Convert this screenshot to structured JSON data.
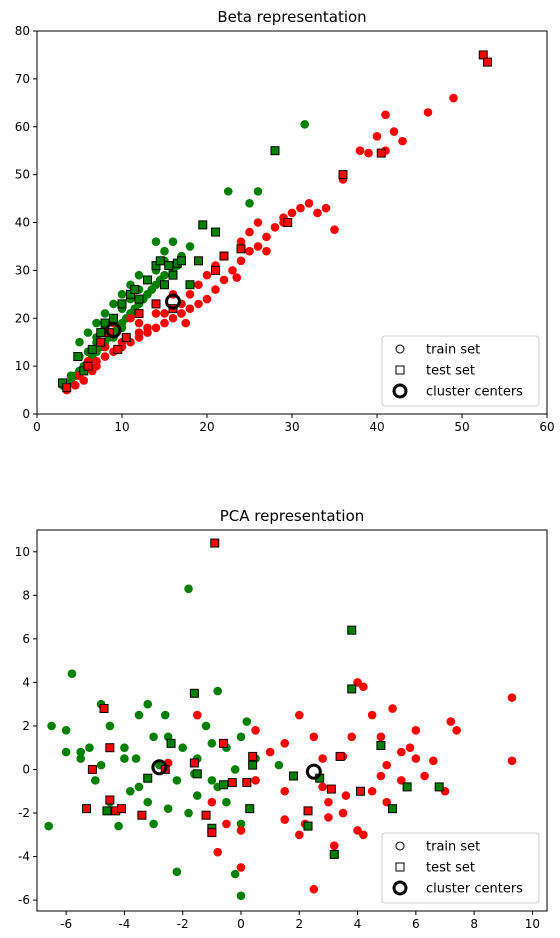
{
  "chart_data": [
    {
      "type": "scatter",
      "title": "Beta representation",
      "xlabel": "",
      "ylabel": "",
      "xlim": [
        0,
        60
      ],
      "ylim": [
        0,
        80
      ],
      "xticks": [
        0,
        10,
        20,
        30,
        40,
        50,
        60
      ],
      "yticks": [
        0,
        10,
        20,
        30,
        40,
        50,
        60,
        70,
        80
      ],
      "legend": {
        "placement": "bottom-right",
        "entries": [
          {
            "label": "train set",
            "marker": "circle-hollow"
          },
          {
            "label": "test set",
            "marker": "square-hollow"
          },
          {
            "label": "cluster centers",
            "marker": "circle-thick"
          }
        ]
      },
      "colors": {
        "class_a": "#ff0000",
        "class_b": "#008000",
        "edge": "#000000"
      },
      "train_green": [
        [
          3,
          6
        ],
        [
          4,
          7
        ],
        [
          4.5,
          8
        ],
        [
          5,
          9
        ],
        [
          5.5,
          10
        ],
        [
          6,
          11
        ],
        [
          6.5,
          12
        ],
        [
          7,
          13
        ],
        [
          7.5,
          14
        ],
        [
          8,
          15
        ],
        [
          8.5,
          16
        ],
        [
          9,
          17
        ],
        [
          9.5,
          18
        ],
        [
          10,
          19
        ],
        [
          10.5,
          20
        ],
        [
          11,
          21
        ],
        [
          11.5,
          22
        ],
        [
          12,
          23
        ],
        [
          12.5,
          24
        ],
        [
          13,
          25
        ],
        [
          13.5,
          26
        ],
        [
          14,
          27
        ],
        [
          14.5,
          28
        ],
        [
          15,
          29
        ],
        [
          16,
          30
        ],
        [
          16.5,
          31
        ],
        [
          17,
          33
        ],
        [
          18,
          35
        ],
        [
          14,
          36
        ],
        [
          15,
          34
        ],
        [
          12,
          29
        ],
        [
          11,
          27
        ],
        [
          10,
          25
        ],
        [
          9,
          23
        ],
        [
          8,
          21
        ],
        [
          7,
          19
        ],
        [
          6,
          17
        ],
        [
          5,
          15
        ],
        [
          6,
          13
        ],
        [
          7,
          15
        ],
        [
          8,
          18
        ],
        [
          9,
          20
        ],
        [
          10,
          22
        ],
        [
          11,
          24
        ],
        [
          12,
          26
        ],
        [
          13,
          28
        ],
        [
          14,
          30
        ],
        [
          15,
          32
        ],
        [
          16,
          36
        ],
        [
          22.5,
          46.5
        ],
        [
          26,
          46.5
        ],
        [
          31.5,
          60.5
        ],
        [
          25,
          44
        ],
        [
          4,
          8
        ],
        [
          5,
          12
        ],
        [
          7,
          16
        ],
        [
          8,
          14
        ],
        [
          9,
          16
        ],
        [
          10,
          18
        ]
      ],
      "train_red": [
        [
          3.5,
          5
        ],
        [
          4.5,
          6
        ],
        [
          5.5,
          7
        ],
        [
          6.5,
          9
        ],
        [
          7,
          10
        ],
        [
          8,
          12
        ],
        [
          9,
          13
        ],
        [
          10,
          14
        ],
        [
          11,
          15
        ],
        [
          12,
          16
        ],
        [
          13,
          17
        ],
        [
          14,
          18
        ],
        [
          15,
          19
        ],
        [
          16,
          20
        ],
        [
          17,
          21
        ],
        [
          18,
          22
        ],
        [
          19,
          23
        ],
        [
          20,
          24
        ],
        [
          21,
          26
        ],
        [
          22,
          28
        ],
        [
          23,
          30
        ],
        [
          24,
          32
        ],
        [
          25,
          34
        ],
        [
          26,
          35
        ],
        [
          27,
          37
        ],
        [
          28,
          39
        ],
        [
          29,
          41
        ],
        [
          30,
          42
        ],
        [
          31,
          43
        ],
        [
          32,
          44
        ],
        [
          33,
          42
        ],
        [
          34,
          43
        ],
        [
          35,
          38.5
        ],
        [
          36,
          49
        ],
        [
          38,
          55
        ],
        [
          40,
          58
        ],
        [
          41,
          62.5
        ],
        [
          42,
          59
        ],
        [
          43,
          57
        ],
        [
          46,
          63
        ],
        [
          49,
          66
        ],
        [
          13,
          18
        ],
        [
          15,
          21
        ],
        [
          17,
          23
        ],
        [
          18,
          25
        ],
        [
          19,
          27
        ],
        [
          20,
          29
        ],
        [
          21,
          31
        ],
        [
          22,
          33
        ],
        [
          24,
          36
        ],
        [
          25,
          38
        ],
        [
          26,
          40
        ],
        [
          27,
          34
        ],
        [
          29,
          40
        ],
        [
          23.5,
          28.5
        ],
        [
          17.5,
          19
        ],
        [
          14,
          21
        ],
        [
          12,
          19
        ],
        [
          10,
          15
        ],
        [
          8,
          14
        ],
        [
          6,
          11
        ],
        [
          5,
          8
        ],
        [
          41,
          55
        ],
        [
          39,
          54.5
        ],
        [
          12,
          17
        ],
        [
          16,
          25
        ],
        [
          18,
          27
        ],
        [
          11,
          20
        ],
        [
          9,
          19
        ],
        [
          7,
          11
        ]
      ],
      "test_green": [
        [
          3,
          6.5
        ],
        [
          4.8,
          12
        ],
        [
          5.5,
          9
        ],
        [
          6.5,
          13.5
        ],
        [
          7.5,
          17
        ],
        [
          8,
          19
        ],
        [
          9,
          20
        ],
        [
          10,
          23
        ],
        [
          11,
          25
        ],
        [
          11.5,
          26
        ],
        [
          12,
          24
        ],
        [
          13,
          28
        ],
        [
          14,
          31
        ],
        [
          14.5,
          32
        ],
        [
          15,
          27
        ],
        [
          15.5,
          31
        ],
        [
          16,
          29
        ],
        [
          16.5,
          31.5
        ],
        [
          17,
          32
        ],
        [
          18,
          27
        ],
        [
          19,
          32
        ],
        [
          19.5,
          39.5
        ],
        [
          21,
          38
        ],
        [
          28,
          55
        ]
      ],
      "test_red": [
        [
          3.5,
          5.5
        ],
        [
          6,
          10
        ],
        [
          7.5,
          15
        ],
        [
          8.5,
          17
        ],
        [
          9.5,
          13.5
        ],
        [
          10.5,
          16
        ],
        [
          12,
          21
        ],
        [
          14,
          23
        ],
        [
          16,
          22
        ],
        [
          21,
          30
        ],
        [
          22,
          33
        ],
        [
          24,
          34.5
        ],
        [
          29.5,
          40
        ],
        [
          36,
          50
        ],
        [
          40.5,
          54.5
        ],
        [
          52.5,
          75
        ],
        [
          53,
          73.5
        ]
      ],
      "cluster_centers": [
        [
          9,
          17.5
        ],
        [
          16,
          23.5
        ]
      ]
    },
    {
      "type": "scatter",
      "title": "PCA representation",
      "xlabel": "",
      "ylabel": "",
      "xlim": [
        -7,
        10.5
      ],
      "ylim": [
        -6.5,
        11
      ],
      "xticks": [
        -6,
        -4,
        -2,
        0,
        2,
        4,
        6,
        8,
        10
      ],
      "yticks": [
        -6,
        -4,
        -2,
        0,
        2,
        4,
        6,
        8,
        10
      ],
      "legend": {
        "placement": "bottom-right",
        "entries": [
          {
            "label": "train set",
            "marker": "circle-hollow"
          },
          {
            "label": "test set",
            "marker": "square-hollow"
          },
          {
            "label": "cluster centers",
            "marker": "circle-thick"
          }
        ]
      },
      "colors": {
        "class_a": "#ff0000",
        "class_b": "#008000",
        "edge": "#000000"
      },
      "train_green": [
        [
          -6.6,
          -2.6
        ],
        [
          -6.5,
          2
        ],
        [
          -6,
          1.8
        ],
        [
          -5.8,
          4.4
        ],
        [
          -5.5,
          0.5
        ],
        [
          -5.2,
          1
        ],
        [
          -5,
          -0.5
        ],
        [
          -4.8,
          3
        ],
        [
          -4.5,
          2
        ],
        [
          -4.5,
          -1.5
        ],
        [
          -4.2,
          -2.6
        ],
        [
          -4,
          0.5
        ],
        [
          -3.8,
          -1
        ],
        [
          -3.5,
          2.5
        ],
        [
          -3.5,
          -0.8
        ],
        [
          -3.2,
          3
        ],
        [
          -3,
          1.5
        ],
        [
          -3,
          -2.5
        ],
        [
          -2.8,
          0.2
        ],
        [
          -2.5,
          1.5
        ],
        [
          -2.5,
          -1.8
        ],
        [
          -2.2,
          -0.5
        ],
        [
          -2.2,
          -4.7
        ],
        [
          -2,
          1
        ],
        [
          -1.8,
          8.3
        ],
        [
          -1.8,
          -2
        ],
        [
          -1.5,
          0.5
        ],
        [
          -1.5,
          -1.2
        ],
        [
          -1.2,
          2
        ],
        [
          -1,
          1.2
        ],
        [
          -1,
          -0.5
        ],
        [
          -0.8,
          3.6
        ],
        [
          -0.5,
          1
        ],
        [
          -0.5,
          -1.5
        ],
        [
          -0.2,
          0
        ],
        [
          0,
          1.5
        ],
        [
          0,
          -2.5
        ],
        [
          0,
          -5.8
        ],
        [
          0.2,
          2.2
        ],
        [
          0.5,
          0.5
        ],
        [
          -0.2,
          -4.8
        ],
        [
          -5.5,
          0.8
        ],
        [
          -4.8,
          0.2
        ],
        [
          -4,
          1
        ],
        [
          -3.6,
          0.5
        ],
        [
          -2.6,
          2.5
        ],
        [
          -1.6,
          -0.2
        ],
        [
          -0.8,
          -0.8
        ],
        [
          1.3,
          0.2
        ],
        [
          -6,
          0.8
        ],
        [
          -3.2,
          -1.5
        ]
      ],
      "train_red": [
        [
          -2.5,
          0.3
        ],
        [
          -1,
          -1.5
        ],
        [
          -0.8,
          -3.8
        ],
        [
          -0.5,
          -2.5
        ],
        [
          0,
          -2.8
        ],
        [
          0,
          -4.5
        ],
        [
          0.5,
          -0.5
        ],
        [
          1,
          0.8
        ],
        [
          1.5,
          1.2
        ],
        [
          1.5,
          -1
        ],
        [
          2,
          2.5
        ],
        [
          2,
          -3
        ],
        [
          2.2,
          -2.5
        ],
        [
          2.5,
          -5.5
        ],
        [
          2.5,
          1.5
        ],
        [
          2.8,
          0.5
        ],
        [
          3,
          -1.5
        ],
        [
          3,
          -2.2
        ],
        [
          3.2,
          -3.5
        ],
        [
          3.5,
          0.6
        ],
        [
          3.5,
          -2
        ],
        [
          3.8,
          1.5
        ],
        [
          4,
          -2.8
        ],
        [
          4,
          4
        ],
        [
          4.2,
          3.8
        ],
        [
          4.5,
          2.5
        ],
        [
          4.5,
          -1
        ],
        [
          4.8,
          1.5
        ],
        [
          5,
          0.2
        ],
        [
          5,
          -1.5
        ],
        [
          5.2,
          2.8
        ],
        [
          5.5,
          0.8
        ],
        [
          5.5,
          -0.5
        ],
        [
          6,
          1.8
        ],
        [
          6,
          0.5
        ],
        [
          6.3,
          -0.3
        ],
        [
          7,
          -1
        ],
        [
          7.2,
          2.2
        ],
        [
          7.4,
          1.8
        ],
        [
          9.3,
          3.3
        ],
        [
          9.3,
          0.4
        ],
        [
          4.2,
          -3
        ],
        [
          3.6,
          -1.2
        ],
        [
          2.8,
          -0.8
        ],
        [
          4.8,
          -0.3
        ],
        [
          5.8,
          1
        ],
        [
          1.5,
          -2.3
        ],
        [
          -1.5,
          2.5
        ],
        [
          0.5,
          1.8
        ],
        [
          6.6,
          0.4
        ]
      ],
      "test_green": [
        [
          -4.6,
          -1.9
        ],
        [
          -3.2,
          -0.4
        ],
        [
          -2.4,
          1.2
        ],
        [
          -1.6,
          3.5
        ],
        [
          -1.5,
          -0.2
        ],
        [
          -1,
          -2.7
        ],
        [
          -0.6,
          -0.7
        ],
        [
          0.3,
          -1.8
        ],
        [
          0.4,
          0.2
        ],
        [
          1.8,
          -0.3
        ],
        [
          2.3,
          -2.6
        ],
        [
          2.7,
          -0.4
        ],
        [
          3.2,
          -3.9
        ],
        [
          3.8,
          3.7
        ],
        [
          3.8,
          6.4
        ],
        [
          4.8,
          1.1
        ],
        [
          5.2,
          -1.8
        ],
        [
          5.7,
          -0.8
        ],
        [
          6.8,
          -0.8
        ]
      ],
      "test_red": [
        [
          -5.3,
          -1.8
        ],
        [
          -5.1,
          0
        ],
        [
          -4.7,
          2.8
        ],
        [
          -4.5,
          1
        ],
        [
          -4.3,
          -1.9
        ],
        [
          -4.1,
          -1.8
        ],
        [
          -3.4,
          -2.1
        ],
        [
          -2.6,
          0
        ],
        [
          -1.6,
          0.3
        ],
        [
          -1.2,
          -2.1
        ],
        [
          -1,
          -2.9
        ],
        [
          -0.9,
          10.4
        ],
        [
          -0.6,
          1.2
        ],
        [
          -0.3,
          -0.6
        ],
        [
          0.2,
          -0.6
        ],
        [
          0.4,
          0.6
        ],
        [
          2.3,
          -1.9
        ],
        [
          3.1,
          -0.9
        ],
        [
          3.4,
          0.6
        ],
        [
          4.1,
          -1
        ],
        [
          -4.5,
          -1.4
        ]
      ],
      "cluster_centers": [
        [
          -2.8,
          0.1
        ],
        [
          2.5,
          -0.1
        ]
      ]
    }
  ]
}
